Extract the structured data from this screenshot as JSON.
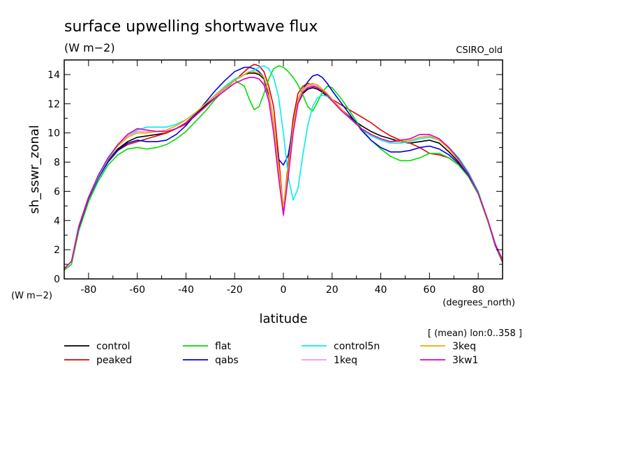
{
  "chart_data": {
    "type": "line",
    "title": "surface upwelling shortwave flux",
    "title_units": "(W m−2)",
    "source_label": "CSIRO_old",
    "xlabel": "latitude",
    "x_units": "(degrees_north)",
    "ylabel": "sh_sswr_zonal",
    "y_units": "(W m−2)",
    "subset_note": "[ (mean) lon:0..358 ]",
    "xlim": [
      -90,
      90
    ],
    "ylim": [
      0,
      15
    ],
    "x_ticks": [
      -80,
      -60,
      -40,
      -20,
      0,
      20,
      40,
      60,
      80
    ],
    "y_ticks": [
      0,
      2,
      4,
      6,
      8,
      10,
      12,
      14
    ],
    "x": [
      -90,
      -87,
      -84,
      -80,
      -76,
      -72,
      -68,
      -64,
      -60,
      -56,
      -52,
      -48,
      -44,
      -40,
      -36,
      -32,
      -28,
      -24,
      -20,
      -16,
      -14,
      -12,
      -10,
      -8,
      -6,
      -4,
      -2,
      0,
      2,
      4,
      6,
      8,
      10,
      12,
      14,
      16,
      18,
      20,
      24,
      28,
      32,
      36,
      40,
      44,
      48,
      52,
      56,
      60,
      64,
      68,
      72,
      76,
      80,
      84,
      87,
      90
    ],
    "series": [
      {
        "name": "control",
        "color": "#000000",
        "values": [
          0.7,
          1.2,
          3.6,
          5.6,
          7.0,
          8.1,
          8.9,
          9.4,
          9.7,
          9.8,
          9.9,
          10.0,
          10.3,
          10.7,
          11.3,
          11.9,
          12.5,
          13.1,
          13.6,
          14.0,
          14.1,
          14.1,
          14.0,
          13.7,
          12.5,
          10.2,
          7.2,
          4.9,
          7.3,
          10.2,
          12.0,
          12.7,
          13.0,
          13.1,
          13.0,
          12.8,
          12.5,
          12.2,
          11.6,
          11.0,
          10.5,
          10.1,
          9.8,
          9.6,
          9.4,
          9.3,
          9.4,
          9.5,
          9.3,
          8.7,
          8.0,
          7.1,
          5.9,
          4.0,
          2.4,
          1.3
        ]
      },
      {
        "name": "peaked",
        "color": "#e00000",
        "values": [
          0.7,
          1.2,
          3.6,
          5.6,
          7.0,
          8.1,
          8.8,
          9.2,
          9.4,
          9.6,
          9.8,
          10.0,
          10.3,
          10.6,
          11.2,
          11.8,
          12.4,
          13.0,
          13.6,
          14.2,
          14.5,
          14.7,
          14.6,
          14.2,
          13.2,
          11.8,
          8.5,
          4.7,
          8.0,
          11.0,
          12.7,
          13.2,
          13.4,
          13.3,
          13.1,
          12.9,
          12.6,
          12.3,
          11.9,
          11.5,
          11.1,
          10.7,
          10.2,
          9.8,
          9.5,
          9.3,
          9.0,
          8.6,
          8.5,
          8.3,
          7.8,
          7.0,
          5.9,
          4.0,
          2.4,
          1.3
        ]
      },
      {
        "name": "flat",
        "color": "#00dd00",
        "values": [
          0.6,
          1.0,
          3.3,
          5.3,
          6.7,
          7.8,
          8.5,
          8.9,
          9.0,
          8.9,
          9.0,
          9.2,
          9.6,
          10.1,
          10.8,
          11.5,
          12.3,
          13.0,
          13.6,
          13.2,
          12.3,
          11.6,
          11.8,
          12.7,
          13.7,
          14.4,
          14.6,
          14.5,
          14.2,
          13.8,
          13.3,
          12.6,
          11.8,
          11.5,
          12.1,
          12.8,
          13.2,
          13.1,
          12.3,
          11.3,
          10.3,
          9.5,
          8.9,
          8.4,
          8.1,
          8.1,
          8.3,
          8.6,
          8.6,
          8.3,
          7.8,
          7.0,
          5.8,
          3.9,
          2.3,
          1.1
        ]
      },
      {
        "name": "qabs",
        "color": "#0000dd",
        "values": [
          0.7,
          1.2,
          3.5,
          5.5,
          6.9,
          8.0,
          8.8,
          9.3,
          9.5,
          9.4,
          9.4,
          9.5,
          9.9,
          10.5,
          11.3,
          12.1,
          12.9,
          13.6,
          14.2,
          14.5,
          14.5,
          14.4,
          14.2,
          13.8,
          12.7,
          10.5,
          8.2,
          7.8,
          8.5,
          10.5,
          12.3,
          13.0,
          13.5,
          13.9,
          14.0,
          13.8,
          13.4,
          12.9,
          12.0,
          11.1,
          10.2,
          9.5,
          9.0,
          8.7,
          8.7,
          8.8,
          9.0,
          9.1,
          8.9,
          8.5,
          7.9,
          7.1,
          5.9,
          4.0,
          2.3,
          1.2
        ]
      },
      {
        "name": "control5n",
        "color": "#00eeee",
        "values": [
          0.7,
          1.2,
          3.6,
          5.6,
          7.0,
          8.2,
          9.1,
          9.8,
          10.2,
          10.4,
          10.4,
          10.4,
          10.6,
          10.9,
          11.4,
          12.0,
          12.6,
          13.2,
          13.7,
          14.0,
          14.2,
          14.3,
          14.5,
          14.6,
          14.4,
          13.8,
          12.5,
          10.0,
          7.0,
          5.4,
          6.2,
          8.5,
          10.5,
          11.8,
          12.4,
          12.6,
          12.5,
          12.2,
          11.5,
          10.9,
          10.3,
          9.8,
          9.5,
          9.3,
          9.3,
          9.4,
          9.6,
          9.7,
          9.5,
          9.0,
          8.3,
          7.3,
          6.0,
          4.0,
          2.4,
          1.2
        ]
      },
      {
        "name": "1keq",
        "color": "#ee99dd",
        "values": [
          0.7,
          1.2,
          3.6,
          5.6,
          7.1,
          8.3,
          9.2,
          9.8,
          10.1,
          10.1,
          10.1,
          10.2,
          10.5,
          10.9,
          11.4,
          12.0,
          12.5,
          13.0,
          13.4,
          13.7,
          13.8,
          13.8,
          13.7,
          13.4,
          12.4,
          10.4,
          7.5,
          4.3,
          7.2,
          10.2,
          12.1,
          12.9,
          13.2,
          13.3,
          13.2,
          13.0,
          12.7,
          12.3,
          11.6,
          10.9,
          10.3,
          9.9,
          9.6,
          9.4,
          9.4,
          9.5,
          9.7,
          9.8,
          9.5,
          8.9,
          8.1,
          7.2,
          5.9,
          4.0,
          2.4,
          1.2
        ]
      },
      {
        "name": "3keq",
        "color": "#eeaa00",
        "values": [
          0.7,
          1.2,
          3.6,
          5.6,
          7.1,
          8.3,
          9.1,
          9.7,
          10.0,
          10.0,
          10.1,
          10.2,
          10.5,
          10.9,
          11.4,
          12.0,
          12.6,
          13.1,
          13.6,
          14.0,
          14.2,
          14.2,
          14.1,
          13.8,
          12.8,
          10.8,
          7.8,
          4.9,
          7.6,
          10.5,
          12.3,
          13.0,
          13.3,
          13.4,
          13.3,
          13.0,
          12.7,
          12.3,
          11.6,
          10.9,
          10.3,
          9.9,
          9.6,
          9.4,
          9.4,
          9.5,
          9.7,
          9.8,
          9.5,
          8.9,
          8.1,
          7.2,
          5.9,
          4.0,
          2.4,
          1.2
        ]
      },
      {
        "name": "3kw1",
        "color": "#dd00bb",
        "values": [
          0.7,
          1.2,
          3.6,
          5.6,
          7.1,
          8.3,
          9.2,
          9.9,
          10.3,
          10.2,
          10.1,
          10.1,
          10.3,
          10.7,
          11.2,
          11.8,
          12.4,
          12.9,
          13.4,
          13.7,
          13.8,
          13.8,
          13.7,
          13.3,
          12.2,
          10.0,
          7.0,
          4.4,
          7.0,
          10.0,
          12.0,
          12.8,
          13.1,
          13.2,
          13.1,
          12.9,
          12.6,
          12.2,
          11.5,
          10.9,
          10.3,
          9.9,
          9.6,
          9.4,
          9.5,
          9.6,
          9.9,
          9.9,
          9.6,
          9.0,
          8.2,
          7.2,
          5.9,
          4.0,
          2.4,
          1.2
        ]
      }
    ],
    "legend": {
      "placement": "bottom",
      "items": [
        {
          "label": "control",
          "color": "#000000"
        },
        {
          "label": "flat",
          "color": "#00dd00"
        },
        {
          "label": "control5n",
          "color": "#00eeee"
        },
        {
          "label": "3keq",
          "color": "#eeaa00"
        },
        {
          "label": "peaked",
          "color": "#e00000"
        },
        {
          "label": "qabs",
          "color": "#0000dd"
        },
        {
          "label": "1keq",
          "color": "#ee99dd"
        },
        {
          "label": "3kw1",
          "color": "#dd00bb"
        }
      ]
    },
    "grid": false
  }
}
